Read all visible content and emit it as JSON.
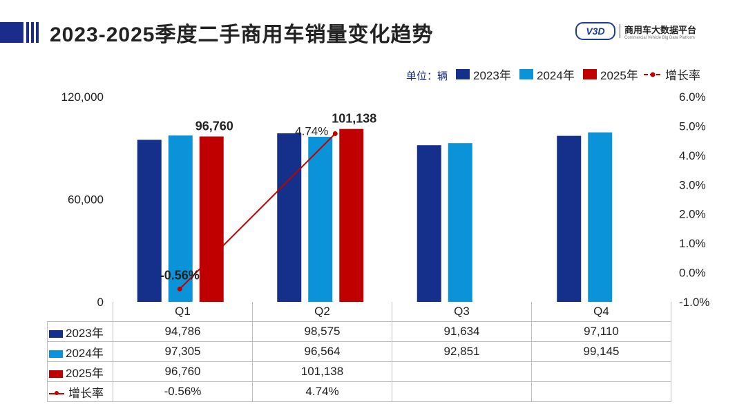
{
  "title": "2023-2025季度二手商用车销量变化趋势",
  "logo": {
    "mark": "V3D",
    "cn": "商用车大数据平台",
    "en": "Commercial Vehicle Big Data Platform"
  },
  "colors": {
    "accent": "#1a2d8a",
    "y2023": "#14308a",
    "y2024": "#0a93d8",
    "y2025": "#c00000",
    "growth": "#c00000"
  },
  "chart_data": {
    "type": "bar",
    "unit_label": "单位：辆",
    "categories": [
      "Q1",
      "Q2",
      "Q3",
      "Q4"
    ],
    "series": [
      {
        "name": "2023年",
        "values": [
          94786,
          98575,
          91634,
          97110
        ]
      },
      {
        "name": "2024年",
        "values": [
          97305,
          96564,
          92851,
          99145
        ]
      },
      {
        "name": "2025年",
        "values": [
          96760,
          101138,
          null,
          null
        ]
      }
    ],
    "line_series": {
      "name": "增长率",
      "values": [
        -0.56,
        4.74,
        null,
        null
      ],
      "labels": [
        "-0.56%",
        "4.74%"
      ]
    },
    "left_axis": {
      "ticks": [
        0,
        60000,
        120000
      ],
      "tick_labels": [
        "0",
        "60,000",
        "120,000"
      ],
      "ylim": [
        0,
        120000
      ]
    },
    "right_axis": {
      "ticks": [
        -1,
        0,
        1,
        2,
        3,
        4,
        5,
        6
      ],
      "tick_labels": [
        "-1.0%",
        "0.0%",
        "1.0%",
        "2.0%",
        "3.0%",
        "4.0%",
        "5.0%",
        "6.0%"
      ],
      "ylim": [
        -1,
        6
      ]
    },
    "bar_labels": [
      "96,760",
      "101,138"
    ]
  },
  "table": {
    "rows": [
      {
        "label": "2023年",
        "cells": [
          "94,786",
          "98,575",
          "91,634",
          "97,110"
        ]
      },
      {
        "label": "2024年",
        "cells": [
          "97,305",
          "96,564",
          "92,851",
          "99,145"
        ]
      },
      {
        "label": "2025年",
        "cells": [
          "96,760",
          "101,138",
          "",
          ""
        ]
      },
      {
        "label": "增长率",
        "cells": [
          "-0.56%",
          "4.74%",
          "",
          ""
        ]
      }
    ]
  }
}
